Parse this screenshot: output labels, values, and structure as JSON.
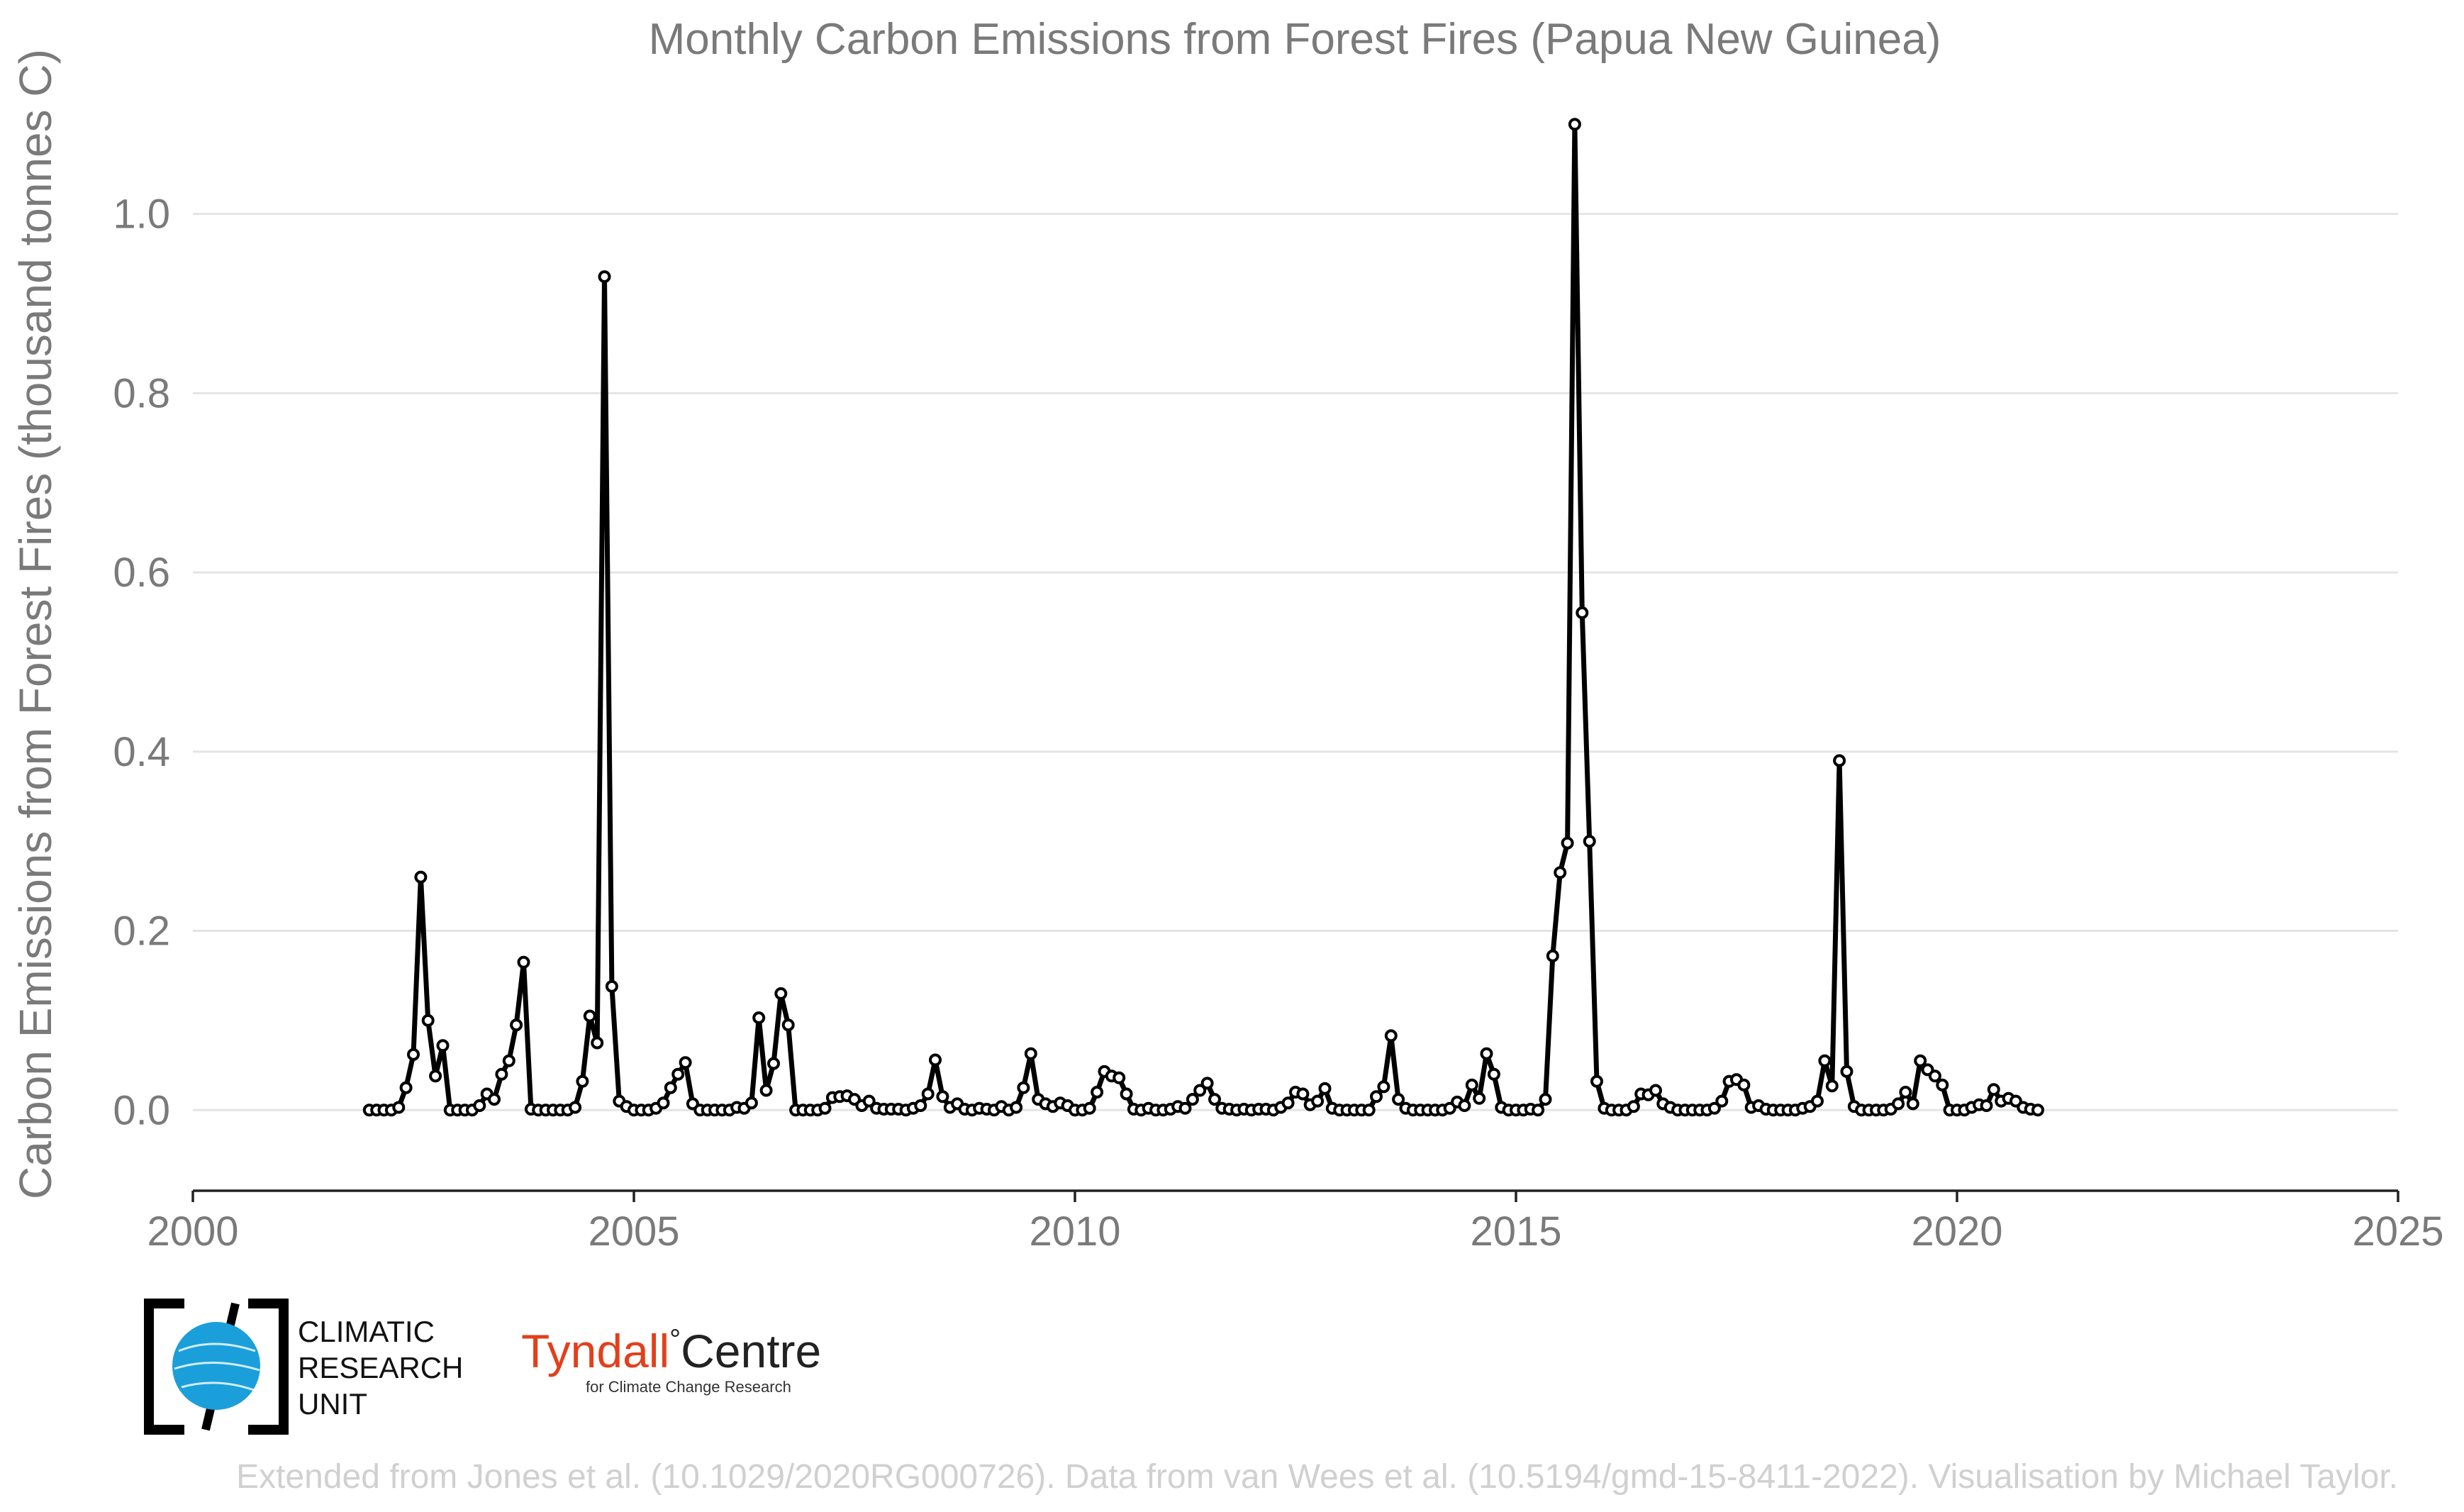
{
  "chart_data": {
    "type": "line",
    "title": "Monthly Carbon Emissions from Forest Fires (Papua New Guinea)",
    "ylabel": "Carbon Emissions from Forest Fires (thousand tonnes C)",
    "xlabel": "",
    "xlim": [
      2000,
      2025
    ],
    "ylim": [
      -0.09,
      1.12
    ],
    "x_ticks": [
      2000,
      2005,
      2010,
      2015,
      2020,
      2025
    ],
    "y_ticks": [
      0.0,
      0.2,
      0.4,
      0.6,
      0.8,
      1.0
    ],
    "y_tick_labels": [
      "0.0",
      "0.2",
      "0.4",
      "0.6",
      "0.8",
      "1.0"
    ],
    "grid": "horizontal",
    "line_color": "#000000",
    "marker": "open-circle",
    "series": [
      {
        "start": "2002-01",
        "frequency": "monthly",
        "values": [
          0,
          0,
          0,
          0,
          0.003,
          0.025,
          0.062,
          0.26,
          0.1,
          0.038,
          0.072,
          0,
          0,
          0,
          0,
          0.005,
          0.018,
          0.012,
          0.04,
          0.055,
          0.095,
          0.165,
          0.001,
          0,
          0,
          0,
          0,
          0,
          0.003,
          0.032,
          0.105,
          0.075,
          0.93,
          0.138,
          0.01,
          0.004,
          0,
          0,
          0,
          0.002,
          0.008,
          0.025,
          0.04,
          0.053,
          0.007,
          0,
          0,
          0,
          0,
          0,
          0.003,
          0.002,
          0.008,
          0.103,
          0.022,
          0.052,
          0.13,
          0.095,
          0,
          0,
          0,
          0,
          0.002,
          0.014,
          0.015,
          0.016,
          0.012,
          0.005,
          0.01,
          0.002,
          0.001,
          0.001,
          0.001,
          0,
          0.002,
          0.005,
          0.018,
          0.056,
          0.015,
          0.003,
          0.007,
          0.001,
          0,
          0.002,
          0.001,
          0,
          0.004,
          0,
          0.003,
          0.025,
          0.063,
          0.012,
          0.007,
          0.004,
          0.008,
          0.005,
          0,
          0,
          0.002,
          0.02,
          0.043,
          0.038,
          0.036,
          0.018,
          0.001,
          0,
          0.002,
          0,
          0,
          0.001,
          0.004,
          0.002,
          0.012,
          0.022,
          0.03,
          0.012,
          0.002,
          0.001,
          0,
          0.001,
          0,
          0.001,
          0.001,
          0,
          0.003,
          0.008,
          0.02,
          0.018,
          0.006,
          0.01,
          0.024,
          0.002,
          0,
          0,
          0,
          0,
          0,
          0.015,
          0.026,
          0.083,
          0.012,
          0.002,
          0,
          0,
          0,
          0,
          0,
          0.002,
          0.009,
          0.005,
          0.028,
          0.013,
          0.063,
          0.04,
          0.003,
          0,
          0,
          0,
          0.001,
          0,
          0.012,
          0.172,
          0.265,
          0.298,
          1.1,
          0.555,
          0.3,
          0.032,
          0.002,
          0,
          0,
          0,
          0.004,
          0.018,
          0.017,
          0.022,
          0.007,
          0.003,
          0,
          0,
          0,
          0,
          0,
          0.002,
          0.01,
          0.032,
          0.034,
          0.028,
          0.003,
          0.005,
          0.001,
          0,
          0,
          0,
          0,
          0.002,
          0.004,
          0.01,
          0.055,
          0.027,
          0.39,
          0.043,
          0.004,
          0,
          0,
          0,
          0,
          0.001,
          0.007,
          0.02,
          0.007,
          0.055,
          0.045,
          0.038,
          0.028,
          0,
          0,
          0,
          0.003,
          0.006,
          0.005,
          0.023,
          0.01,
          0.013,
          0.01,
          0.003,
          0.001,
          0
        ]
      }
    ]
  },
  "credit": "Extended from Jones et al. (10.1029/2020RG000726). Data from van Wees et al. (10.5194/gmd-15-8411-2022). Visualisation by Michael Taylor.",
  "logos": {
    "cru_line1": "CLIMATIC",
    "cru_line2": "RESEARCH",
    "cru_line3": "UNIT",
    "tyndall_main": "Tyndall",
    "tyndall_degree": "°",
    "tyndall_centre": "Centre",
    "tyndall_sub": "for Climate Change Research",
    "cru_globe_color": "#1a9fdb",
    "tyndall_color": "#e2401c"
  }
}
